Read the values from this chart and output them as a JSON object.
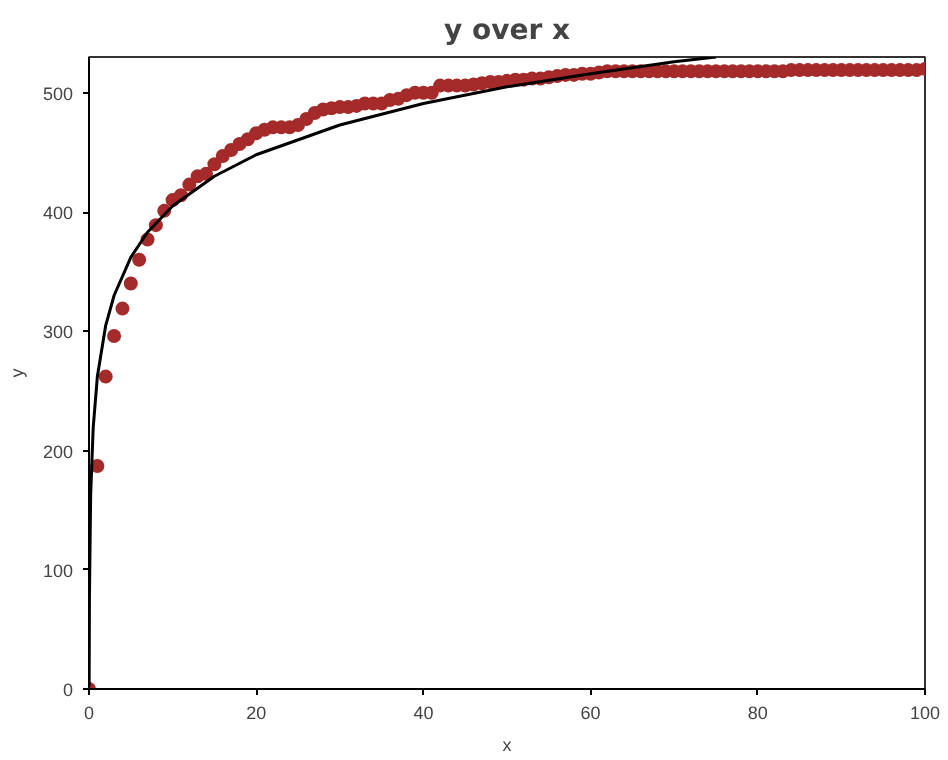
{
  "chart_data": {
    "type": "scatter",
    "title": "y over x",
    "xlabel": "x",
    "ylabel": "y",
    "xlim": [
      0,
      100
    ],
    "ylim": [
      0,
      530
    ],
    "xticks": [
      0,
      20,
      40,
      60,
      80,
      100
    ],
    "yticks": [
      0,
      100,
      200,
      300,
      400,
      500
    ],
    "grid": false,
    "marker": "circle",
    "x": [
      0,
      1,
      2,
      3,
      4,
      5,
      6,
      7,
      8,
      9,
      10,
      11,
      12,
      13,
      14,
      15,
      16,
      17,
      18,
      19,
      20,
      21,
      22,
      23,
      24,
      25,
      26,
      27,
      28,
      29,
      30,
      31,
      32,
      33,
      34,
      35,
      36,
      37,
      38,
      39,
      40,
      41,
      42,
      43,
      44,
      45,
      46,
      47,
      48,
      49,
      50,
      51,
      52,
      53,
      54,
      55,
      56,
      57,
      58,
      59,
      60,
      61,
      62,
      63,
      64,
      65,
      66,
      67,
      68,
      69,
      70,
      71,
      72,
      73,
      74,
      75,
      76,
      77,
      78,
      79,
      80,
      81,
      82,
      83,
      84,
      85,
      86,
      87,
      88,
      89,
      90,
      91,
      92,
      93,
      94,
      95,
      96,
      97,
      98,
      99,
      100
    ],
    "series": [
      {
        "color": "#a52a2a",
        "values": [
          0,
          187,
          262,
          296,
          319,
          340,
          360,
          377,
          389,
          401,
          410,
          414,
          423,
          430,
          432,
          440,
          447,
          452,
          457,
          461,
          466,
          469,
          471,
          471,
          471,
          473,
          478,
          483,
          486,
          487,
          488,
          488,
          489,
          491,
          491,
          491,
          494,
          495,
          498,
          500,
          500,
          500,
          506,
          506,
          506,
          506,
          507,
          508,
          509,
          509,
          510,
          511,
          511,
          512,
          512,
          513,
          514,
          515,
          515,
          516,
          516,
          517,
          518,
          518,
          518,
          518,
          518,
          518,
          518,
          518,
          518,
          518,
          518,
          518,
          518,
          518,
          518,
          518,
          518,
          518,
          518,
          518,
          518,
          518,
          519,
          519,
          519,
          519,
          519,
          519,
          519,
          519,
          519,
          519,
          519,
          519,
          519,
          519,
          519,
          519,
          520
        ]
      },
      {
        "type": "line",
        "color": "#000000",
        "line_style": "solid",
        "marker": "none",
        "x": [
          0.015,
          0.05,
          0.2,
          0.5,
          1,
          2,
          3,
          5,
          7,
          10,
          15,
          20,
          30,
          40,
          50,
          60,
          70,
          75
        ],
        "values": [
          2,
          76,
          163,
          219,
          262,
          305,
          330,
          362,
          383,
          405,
          430,
          448,
          473,
          491,
          505,
          516,
          526,
          530
        ]
      }
    ]
  }
}
